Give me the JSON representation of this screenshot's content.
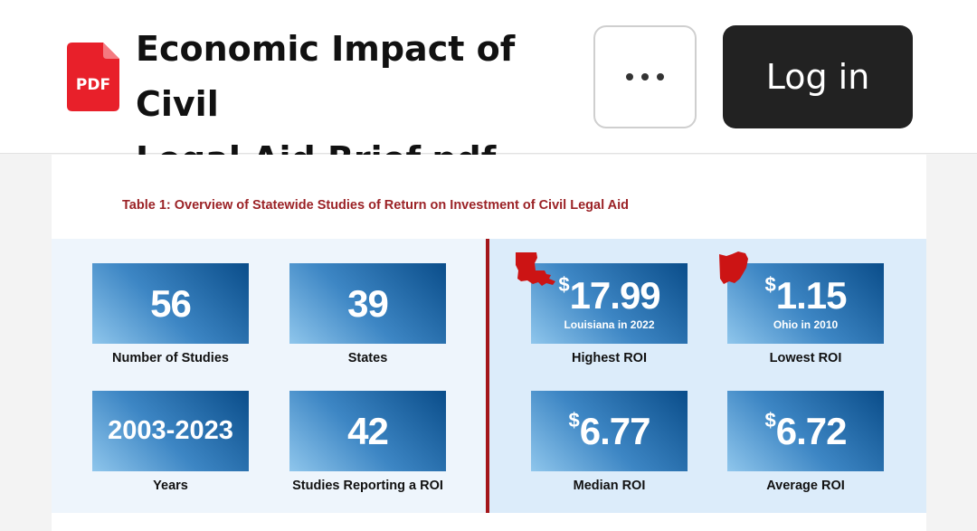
{
  "header": {
    "file_icon_text": "PDF",
    "title_line1": "Economic Impact of Civil",
    "title_line2": "Legal Aid Brief.pdf",
    "login_label": "Log in"
  },
  "document": {
    "table_caption": "Table 1: Overview of Statewide Studies of Return on Investment of Civil Legal Aid",
    "stats_left": [
      {
        "value": "56",
        "label": "Number of Studies"
      },
      {
        "value": "39",
        "label": "States"
      },
      {
        "value": "2003-2023",
        "label": "Years"
      },
      {
        "value": "42",
        "label": "Studies Reporting a ROI"
      }
    ],
    "stats_right": [
      {
        "currency": "$",
        "value": "17.99",
        "sub": "Louisiana in 2022",
        "label": "Highest ROI"
      },
      {
        "currency": "$",
        "value": "1.15",
        "sub": "Ohio in 2010",
        "label": "Lowest ROI"
      },
      {
        "currency": "$",
        "value": "6.77",
        "label": "Median ROI"
      },
      {
        "currency": "$",
        "value": "6.72",
        "label": "Average ROI"
      }
    ]
  },
  "colors": {
    "accent_red": "#a4161a",
    "caption_red": "#9b2226",
    "box_dark": "#0a4d8a",
    "box_light": "#8fc6ec"
  },
  "icons": [
    "pdf-file-icon",
    "more-options-icon",
    "louisiana-state-icon",
    "ohio-state-icon"
  ]
}
